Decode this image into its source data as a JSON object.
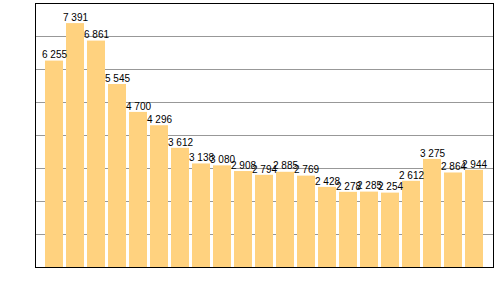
{
  "chart_data": {
    "type": "bar",
    "categories": [
      null,
      null,
      null,
      null,
      null,
      null,
      null,
      null,
      null,
      null,
      null,
      null,
      null,
      null,
      null,
      null,
      null,
      null,
      null,
      null,
      null
    ],
    "values": [
      6255,
      7391,
      6861,
      5545,
      4700,
      4296,
      3612,
      3138,
      3080,
      2908,
      2794,
      2885,
      2769,
      2428,
      2278,
      2285,
      2254,
      2612,
      3275,
      2864,
      2944
    ],
    "value_labels": [
      "6 255",
      "7 391",
      "6 861",
      "5 545",
      "4 700",
      "4 296",
      "3 612",
      "3 138",
      "3 080",
      "2 908",
      "2 794",
      "2 885",
      "2 769",
      "2 428",
      "2 278",
      "2 285",
      "2 254",
      "2 612",
      "3 275",
      "2 864",
      "2 944"
    ],
    "color": "#ffd27f",
    "ylim": [
      0,
      8000
    ],
    "yticks": [
      0,
      1000,
      2000,
      3000,
      4000,
      5000,
      6000,
      7000,
      8000
    ],
    "grid": true,
    "data_labels": true,
    "tick_labels": false
  }
}
